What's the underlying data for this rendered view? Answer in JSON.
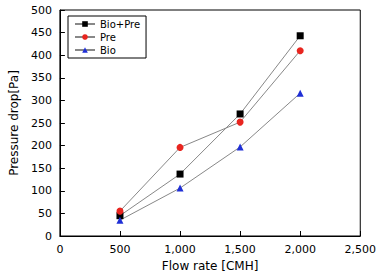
{
  "chart_data": {
    "type": "line",
    "x_label": "Flow rate [CMH]",
    "y_label": "Pressure drop[Pa]",
    "x": [
      500,
      1000,
      1500,
      2000
    ],
    "series": [
      {
        "name": "Bio+Pre",
        "color": "#000000",
        "marker": "square",
        "values": [
          45,
          137,
          270,
          443
        ]
      },
      {
        "name": "Pre",
        "color": "#e8251f",
        "marker": "circle",
        "values": [
          55,
          196,
          252,
          410
        ]
      },
      {
        "name": "Bio",
        "color": "#1f2fd6",
        "marker": "triangle",
        "values": [
          35,
          106,
          197,
          316
        ]
      }
    ],
    "xlim": [
      0,
      2500
    ],
    "xticks": [
      0,
      500,
      1000,
      1500,
      2000,
      2500
    ],
    "ylim": [
      0,
      500
    ],
    "yticks": [
      0,
      50,
      100,
      150,
      200,
      250,
      300,
      350,
      400,
      450,
      500
    ],
    "grid": false,
    "legend": "upper left"
  }
}
